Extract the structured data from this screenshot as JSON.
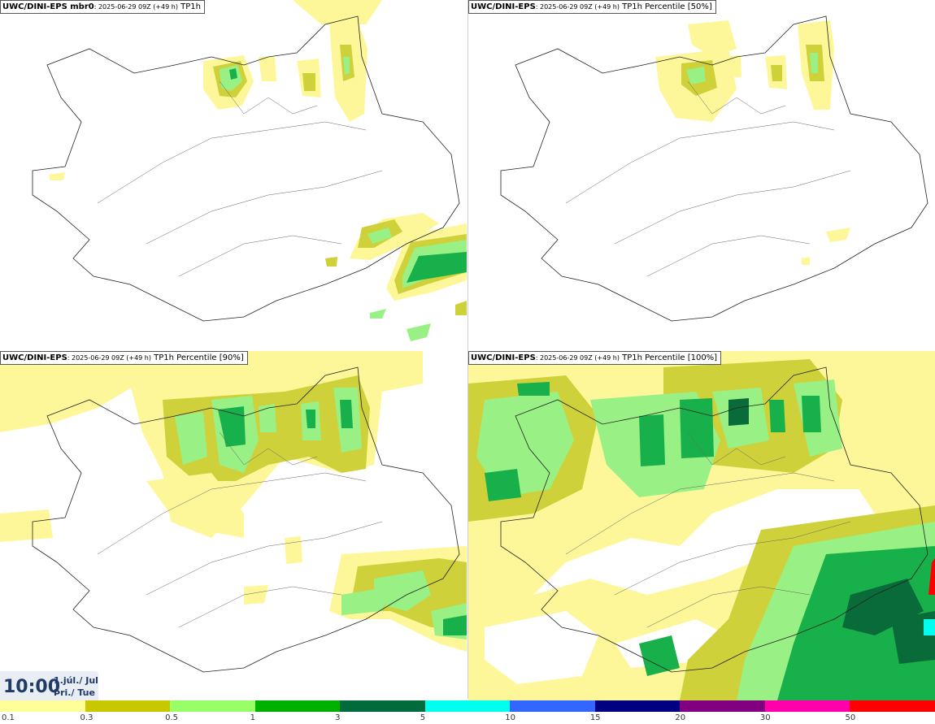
{
  "panels": [
    {
      "id": "tl",
      "title_main": "UWC/DINI-EPS mbr0",
      "title_run": ": 2025-06-29 09Z (+49 h)",
      "title_field": " TP1h"
    },
    {
      "id": "tr",
      "title_main": "UWC/DINI-EPS",
      "title_run": ": 2025-06-29 09Z (+49 h)",
      "title_field": " TP1h Percentile [50%]"
    },
    {
      "id": "bl",
      "title_main": "UWC/DINI-EPS",
      "title_run": ": 2025-06-29 09Z (+49 h)",
      "title_field": " TP1h Percentile [90%]"
    },
    {
      "id": "br",
      "title_main": "UWC/DINI-EPS",
      "title_run": ": 2025-06-29 09Z (+49 h)",
      "title_field": " TP1h Percentile [100%]"
    }
  ],
  "time": {
    "clock": "10:00",
    "date_line1": "1.júl./ Jul",
    "date_line2": "Þri./ Tue"
  },
  "legend": {
    "ticks": [
      "0.1",
      "0.3",
      "0.5",
      "1",
      "3",
      "5",
      "10",
      "15",
      "20",
      "30",
      "50"
    ],
    "colors": [
      "#ffff99",
      "#c8c800",
      "#99ff66",
      "#00b000",
      "#006b3c",
      "#00ffee",
      "#3366ff",
      "#000080",
      "#800080",
      "#ff00aa",
      "#ff0000"
    ]
  },
  "precip_colors": {
    "light": "#fdf79a",
    "olive": "#cfd13a",
    "lightgreen": "#99f085",
    "green": "#17b04a",
    "dark": "#0a6b3a"
  }
}
